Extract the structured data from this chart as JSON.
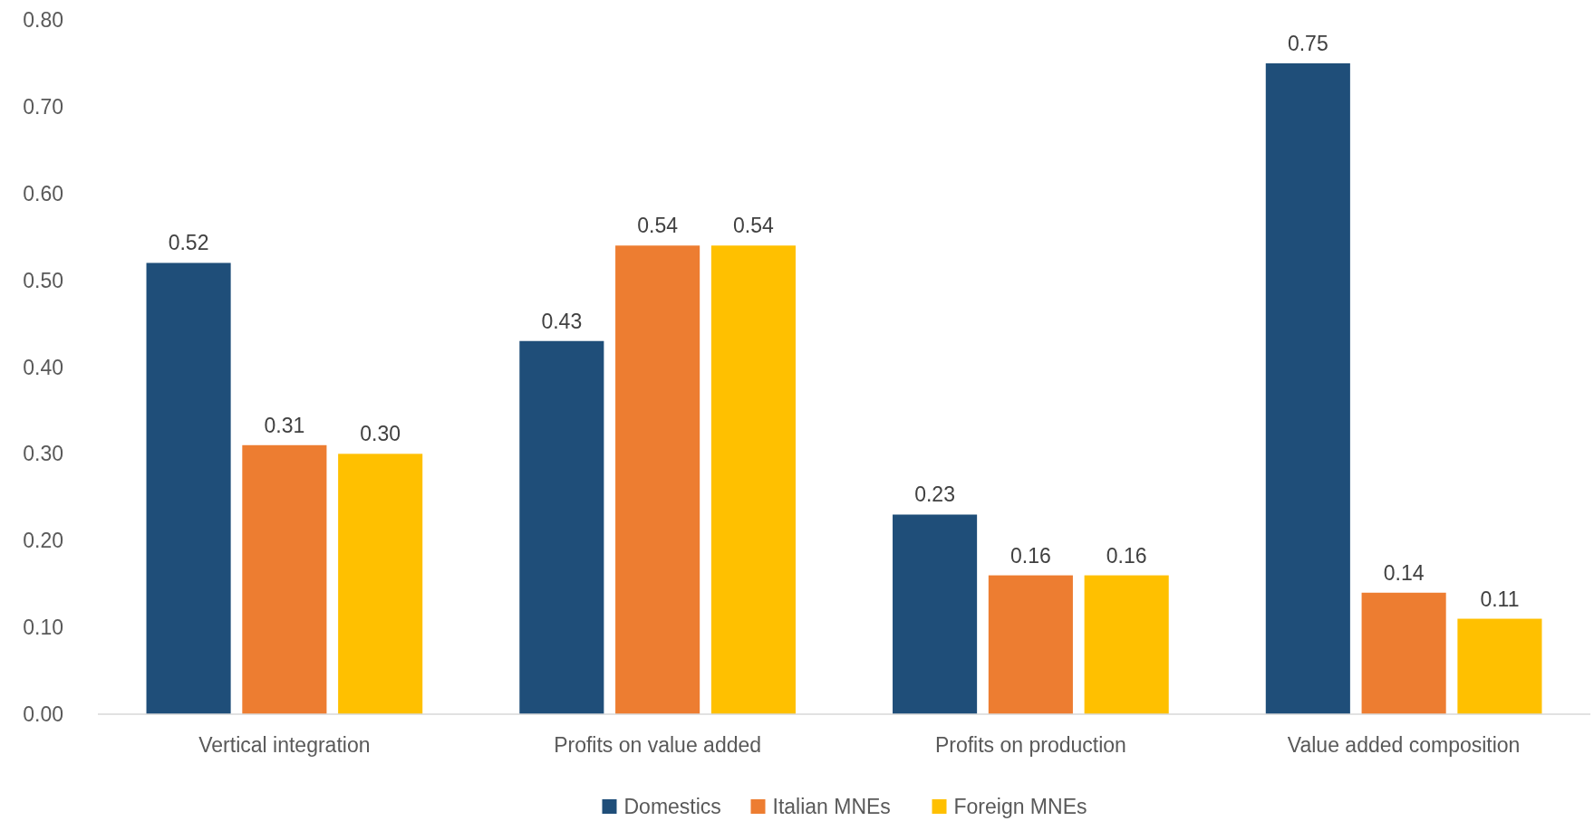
{
  "chart_data": {
    "type": "bar",
    "categories": [
      "Vertical integration",
      "Profits on value added",
      "Profits on production",
      "Value added composition"
    ],
    "series": [
      {
        "name": "Domestics",
        "color": "#1f4e79",
        "values": [
          0.52,
          0.43,
          0.23,
          0.75
        ],
        "value_labels": [
          "0.52",
          "0.43",
          "0.23",
          "0.75"
        ]
      },
      {
        "name": "Italian MNEs",
        "color": "#ed7d31",
        "values": [
          0.31,
          0.54,
          0.16,
          0.14
        ],
        "value_labels": [
          "0.31",
          "0.54",
          "0.16",
          "0.14"
        ]
      },
      {
        "name": "Foreign MNEs",
        "color": "#ffc000",
        "values": [
          0.3,
          0.54,
          0.16,
          0.11
        ],
        "value_labels": [
          "0.30",
          "0.54",
          "0.16",
          "0.11"
        ]
      }
    ],
    "ylim": [
      0,
      0.8
    ],
    "yticks": [
      {
        "value": 0,
        "label": "0.00"
      },
      {
        "value": 0.1,
        "label": "0.10"
      },
      {
        "value": 0.2,
        "label": "0.20"
      },
      {
        "value": 0.3,
        "label": "0.30"
      },
      {
        "value": 0.4,
        "label": "0.40"
      },
      {
        "value": 0.5,
        "label": "0.50"
      },
      {
        "value": 0.6,
        "label": "0.60"
      },
      {
        "value": 0.7,
        "label": "0.70"
      },
      {
        "value": 0.8,
        "label": "0.80"
      }
    ],
    "grid": false,
    "legend": "bottom"
  }
}
